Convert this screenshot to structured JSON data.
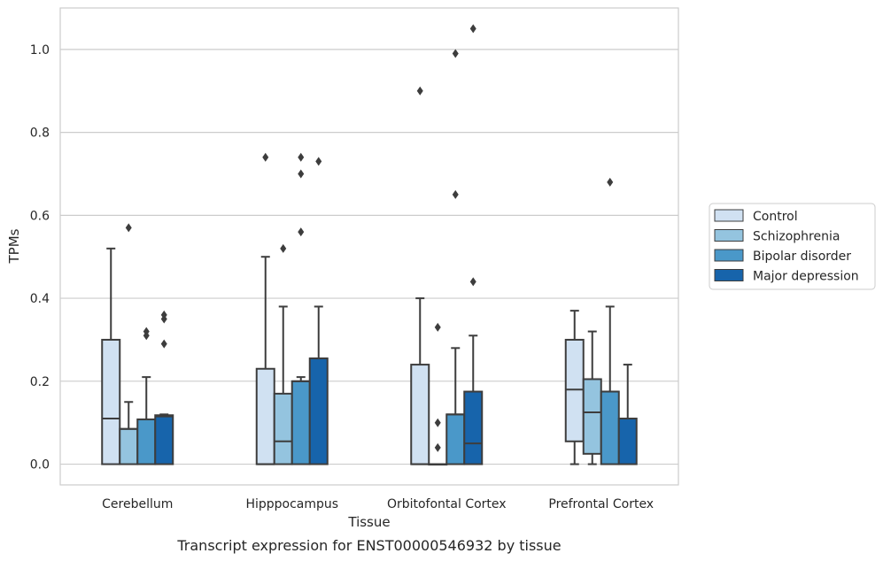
{
  "chart_data": {
    "type": "box",
    "title": "",
    "caption": "Transcript expression for ENST00000546932 by tissue",
    "xlabel": "Tissue",
    "ylabel": "TPMs",
    "ylim": [
      -0.05,
      1.1
    ],
    "yticks": [
      0.0,
      0.2,
      0.4,
      0.6,
      0.8,
      1.0
    ],
    "ytick_labels": [
      "0.0",
      "0.2",
      "0.4",
      "0.6",
      "0.8",
      "1.0"
    ],
    "grid": "horizontal",
    "legend_position": "right",
    "categories": [
      "Cerebellum",
      "Hipppocampus",
      "Orbitofontal Cortex",
      "Prefrontal Cortex"
    ],
    "series": [
      {
        "name": "Control",
        "color": "#d0e1f2",
        "boxes": [
          {
            "q1": 0.0,
            "median": 0.11,
            "q3": 0.3,
            "whisker_low": 0.0,
            "whisker_high": 0.52,
            "outliers": []
          },
          {
            "q1": 0.0,
            "median": 0.0,
            "q3": 0.23,
            "whisker_low": 0.0,
            "whisker_high": 0.5,
            "outliers": [
              0.74
            ]
          },
          {
            "q1": 0.0,
            "median": 0.0,
            "q3": 0.24,
            "whisker_low": 0.0,
            "whisker_high": 0.4,
            "outliers": [
              0.9
            ]
          },
          {
            "q1": 0.055,
            "median": 0.18,
            "q3": 0.3,
            "whisker_low": 0.0,
            "whisker_high": 0.37,
            "outliers": []
          }
        ]
      },
      {
        "name": "Schizophrenia",
        "color": "#94c4df",
        "boxes": [
          {
            "q1": 0.0,
            "median": 0.085,
            "q3": 0.085,
            "whisker_low": 0.0,
            "whisker_high": 0.15,
            "outliers": [
              0.57
            ]
          },
          {
            "q1": 0.0,
            "median": 0.055,
            "q3": 0.17,
            "whisker_low": 0.0,
            "whisker_high": 0.38,
            "outliers": [
              0.52
            ]
          },
          {
            "q1": 0.0,
            "median": 0.0,
            "q3": 0.0,
            "whisker_low": 0.0,
            "whisker_high": 0.0,
            "outliers": [
              0.04,
              0.1,
              0.33
            ]
          },
          {
            "q1": 0.025,
            "median": 0.125,
            "q3": 0.205,
            "whisker_low": 0.0,
            "whisker_high": 0.32,
            "outliers": []
          }
        ]
      },
      {
        "name": "Bipolar disorder",
        "color": "#4a98c9",
        "boxes": [
          {
            "q1": 0.0,
            "median": 0.108,
            "q3": 0.108,
            "whisker_low": 0.0,
            "whisker_high": 0.21,
            "outliers": [
              0.31,
              0.32
            ]
          },
          {
            "q1": 0.0,
            "median": 0.2,
            "q3": 0.2,
            "whisker_low": 0.0,
            "whisker_high": 0.21,
            "outliers": [
              0.56,
              0.7,
              0.74
            ]
          },
          {
            "q1": 0.0,
            "median": 0.12,
            "q3": 0.12,
            "whisker_low": 0.0,
            "whisker_high": 0.28,
            "outliers": [
              0.65,
              0.99
            ]
          },
          {
            "q1": 0.0,
            "median": 0.175,
            "q3": 0.175,
            "whisker_low": 0.0,
            "whisker_high": 0.38,
            "outliers": [
              0.68
            ]
          }
        ]
      },
      {
        "name": "Major depression",
        "color": "#1764ab",
        "boxes": [
          {
            "q1": 0.0,
            "median": 0.115,
            "q3": 0.118,
            "whisker_low": 0.0,
            "whisker_high": 0.12,
            "outliers": [
              0.29,
              0.35,
              0.36
            ]
          },
          {
            "q1": 0.0,
            "median": 0.255,
            "q3": 0.255,
            "whisker_low": 0.0,
            "whisker_high": 0.38,
            "outliers": [
              0.73
            ]
          },
          {
            "q1": 0.0,
            "median": 0.05,
            "q3": 0.175,
            "whisker_low": 0.0,
            "whisker_high": 0.31,
            "outliers": [
              0.44,
              1.05
            ]
          },
          {
            "q1": 0.0,
            "median": 0.11,
            "q3": 0.11,
            "whisker_low": 0.0,
            "whisker_high": 0.24,
            "outliers": []
          }
        ]
      }
    ]
  }
}
